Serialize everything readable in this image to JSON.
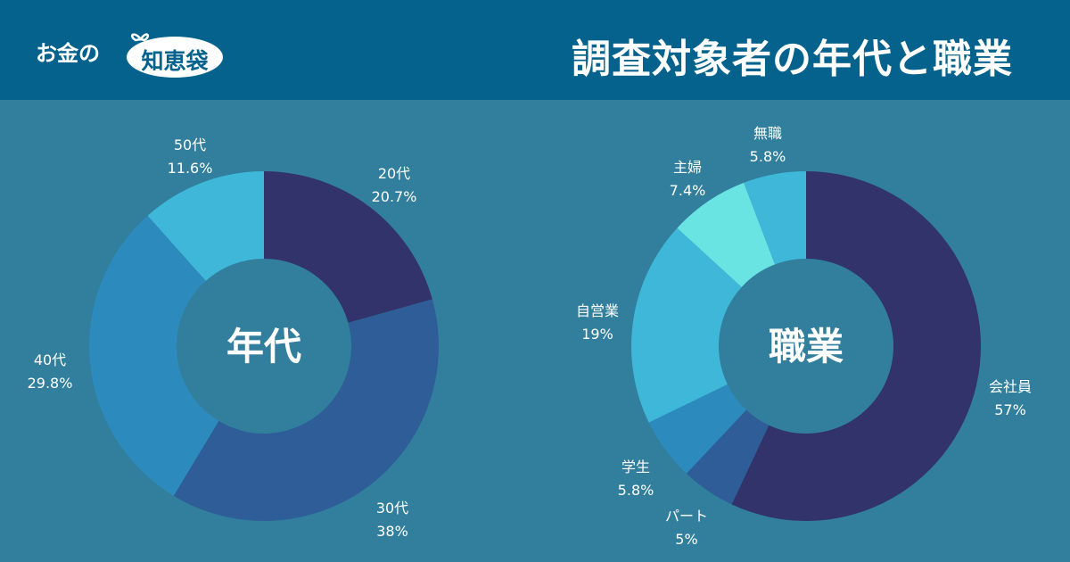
{
  "header": {
    "logo_prefix": "お金の",
    "logo_accent": "知恵袋",
    "title": "調査対象者の年代と職業"
  },
  "chart_data": [
    {
      "type": "pie",
      "center_label": "年代",
      "slices": [
        {
          "label": "20代",
          "value": 20.7,
          "display": "20.7%",
          "color": "#31336a"
        },
        {
          "label": "30代",
          "value": 38,
          "display": "38%",
          "color": "#2f5d97"
        },
        {
          "label": "40代",
          "value": 29.8,
          "display": "29.8%",
          "color": "#2d8abd"
        },
        {
          "label": "50代",
          "value": 11.6,
          "display": "11.6%",
          "color": "#3fb7d8"
        }
      ]
    },
    {
      "type": "pie",
      "center_label": "職業",
      "slices": [
        {
          "label": "会社員",
          "value": 57,
          "display": "57%",
          "color": "#31336a"
        },
        {
          "label": "パート",
          "value": 5,
          "display": "5%",
          "color": "#2f5d97"
        },
        {
          "label": "学生",
          "value": 5.8,
          "display": "5.8%",
          "color": "#2d8abd"
        },
        {
          "label": "自営業",
          "value": 19,
          "display": "19%",
          "color": "#3fb7d8"
        },
        {
          "label": "主婦",
          "value": 7.4,
          "display": "7.4%",
          "color": "#6ae3e3"
        },
        {
          "label": "無職",
          "value": 5.8,
          "display": "5.8%",
          "color": "#3fb7d8"
        }
      ]
    }
  ]
}
